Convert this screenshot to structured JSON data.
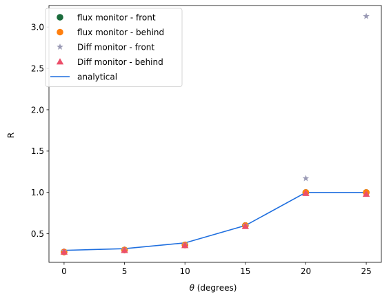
{
  "chart_data": {
    "type": "scatter",
    "xlabel_theta": "θ",
    "xlabel_rest": " (degrees)",
    "ylabel": "R",
    "xlim": [
      -1.25,
      26.25
    ],
    "ylim": [
      0.155,
      3.26
    ],
    "xticks": [
      0,
      5,
      10,
      15,
      20,
      25
    ],
    "yticks": [
      0.5,
      1.0,
      1.5,
      2.0,
      2.5,
      3.0
    ],
    "xtick_labels": [
      "0",
      "5",
      "10",
      "15",
      "20",
      "25"
    ],
    "ytick_labels": [
      "0.5",
      "1.0",
      "1.5",
      "2.0",
      "2.5",
      "3.0"
    ],
    "legend_position": "upper-left",
    "series": [
      {
        "name": "flux monitor - front",
        "marker": "circle",
        "color": "#1a6b3c",
        "x": [
          0,
          5,
          10,
          15,
          20,
          25
        ],
        "y": [
          0.28,
          0.305,
          0.365,
          0.6,
          1.0,
          1.0
        ]
      },
      {
        "name": "flux monitor - behind",
        "marker": "circle",
        "color": "#ff7f0e",
        "x": [
          0,
          5,
          10,
          15,
          20,
          25
        ],
        "y": [
          0.28,
          0.305,
          0.365,
          0.6,
          1.0,
          1.0
        ]
      },
      {
        "name": "Diff monitor - front",
        "marker": "star",
        "color": "#9a9ab5",
        "x": [
          0,
          5,
          10,
          15,
          20,
          25
        ],
        "y": [
          0.29,
          0.31,
          0.37,
          0.6,
          1.17,
          3.13
        ]
      },
      {
        "name": "Diff monitor - behind",
        "marker": "triangle",
        "color": "#ec4f6a",
        "x": [
          0,
          5,
          10,
          15,
          20,
          25
        ],
        "y": [
          0.28,
          0.3,
          0.36,
          0.59,
          0.99,
          0.98
        ]
      },
      {
        "name": "analytical",
        "marker": "line",
        "color": "#1f6fdf",
        "x": [
          0,
          5,
          10,
          15,
          20,
          25
        ],
        "y": [
          0.3,
          0.32,
          0.39,
          0.6,
          1.0,
          1.0
        ]
      }
    ]
  }
}
